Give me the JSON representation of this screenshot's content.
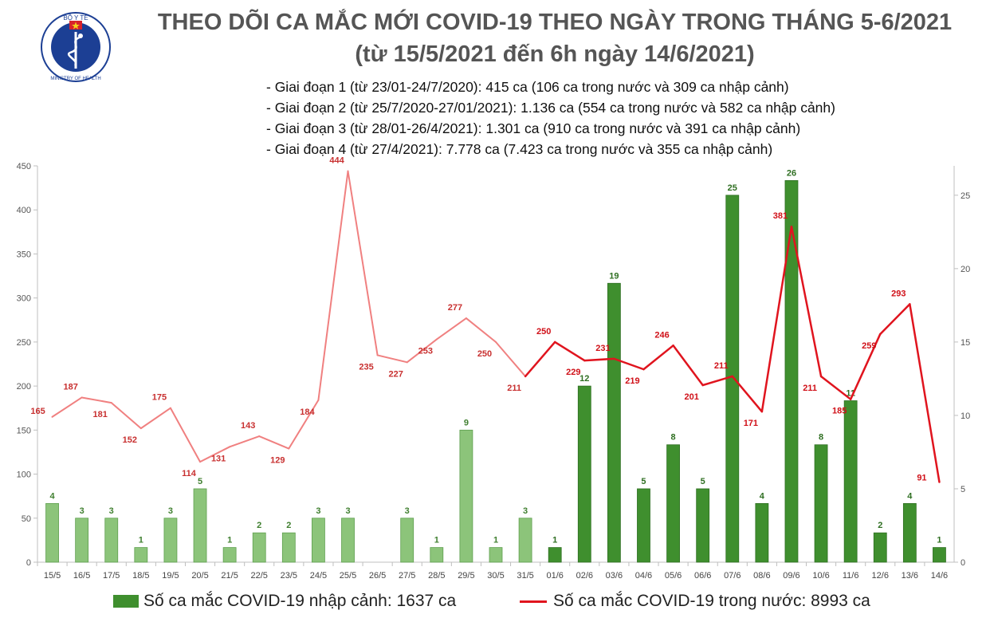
{
  "title_line1": "THEO DÕI CA MẮC MỚI COVID-19 THEO NGÀY TRONG THÁNG 5-6/2021",
  "title_line2": "(từ 15/5/2021 đến 6h ngày 14/6/2021)",
  "logo": {
    "top_text": "BỘ Y TẾ",
    "bottom_text": "MINISTRY OF HEALTH",
    "icon": "caduceus-icon",
    "ring_color": "#1c3f94",
    "star_color": "#f2d21b",
    "flag_color": "#d8222a"
  },
  "notes": [
    "- Giai đoạn 1 (từ 23/01-24/7/2020): 415 ca (106 ca trong nước và 309 ca nhập cảnh)",
    "- Giai đoạn 2 (từ 25/7/2020-27/01/2021): 1.136 ca (554 ca trong nước và 582 ca nhập cảnh)",
    "- Giai đoạn 3 (từ 28/01-26/4/2021): 1.301 ca (910 ca trong nước và 391 ca nhập cảnh)",
    "- Giai đoạn 4 (từ 27/4/2021): 7.778 ca (7.423 ca trong nước và 355 ca nhập cảnh)"
  ],
  "legend": {
    "bar_label": "Số ca mắc COVID-19 nhập cảnh: 1637 ca",
    "line_label": "Số ca mắc COVID-19 trong nước: 8993 ca"
  },
  "chart_data": {
    "type": "bar+line",
    "categories": [
      "15/5",
      "16/5",
      "17/5",
      "18/5",
      "19/5",
      "20/5",
      "21/5",
      "22/5",
      "23/5",
      "24/5",
      "25/5",
      "26/5",
      "27/5",
      "28/5",
      "29/5",
      "30/5",
      "31/5",
      "01/6",
      "02/6",
      "03/6",
      "04/6",
      "05/6",
      "06/6",
      "07/6",
      "08/6",
      "09/6",
      "10/6",
      "11/6",
      "12/6",
      "13/6",
      "14/6"
    ],
    "series": [
      {
        "name": "Số ca mắc COVID-19 nhập cảnh: 1637 ca",
        "type": "bar",
        "axis": "right",
        "values": [
          4,
          3,
          3,
          1,
          3,
          5,
          1,
          2,
          2,
          3,
          3,
          0,
          3,
          1,
          9,
          1,
          3,
          1,
          12,
          19,
          5,
          8,
          5,
          25,
          4,
          26,
          8,
          11,
          2,
          4,
          1
        ],
        "color_may": "#8cc47a",
        "color_june": "#3f8f2e"
      },
      {
        "name": "Số ca mắc COVID-19 trong nước: 8993 ca",
        "type": "line",
        "axis": "left",
        "values": [
          165,
          187,
          181,
          152,
          175,
          114,
          131,
          143,
          129,
          184,
          444,
          235,
          227,
          253,
          277,
          250,
          211,
          250,
          229,
          231,
          219,
          246,
          201,
          211,
          171,
          381,
          211,
          185,
          259,
          293,
          91
        ],
        "color_may": "#f08080",
        "color_june": "#e0141e"
      }
    ],
    "left_axis": {
      "min": 0,
      "max": 450,
      "ticks": [
        0,
        50,
        100,
        150,
        200,
        250,
        300,
        350,
        400,
        450
      ]
    },
    "right_axis": {
      "min": 0,
      "max": 27,
      "ticks": [
        0,
        5,
        10,
        15,
        20,
        25
      ]
    },
    "grid": false,
    "legend_position": "bottom"
  }
}
